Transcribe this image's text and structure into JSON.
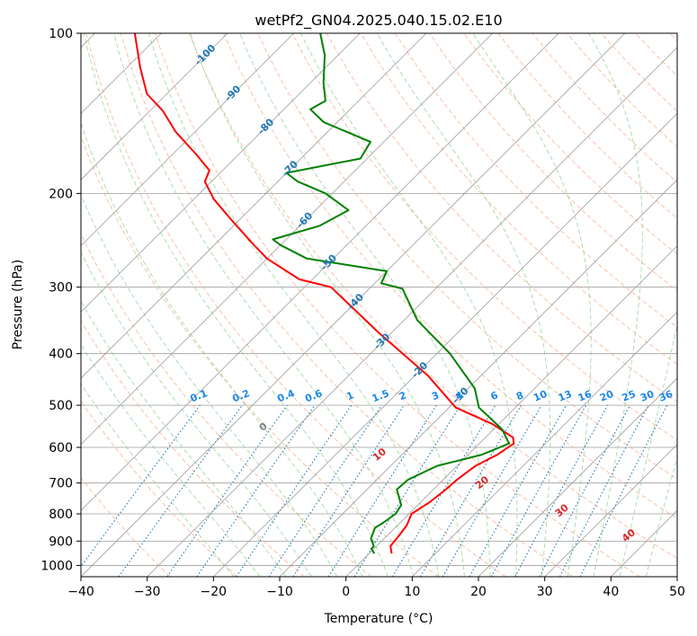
{
  "chart_data": {
    "type": "line",
    "title": "wetPf2_GN04.2025.040.15.02.E10",
    "xlabel": "Temperature (°C)",
    "ylabel": "Pressure (hPa)",
    "xlim": [
      -40,
      50
    ],
    "ylim": [
      1050,
      100
    ],
    "y_scale": "log",
    "grid": true,
    "x_ticks": [
      "−40",
      "−30",
      "−20",
      "−10",
      "0",
      "10",
      "20",
      "30",
      "40",
      "50"
    ],
    "x_tick_values": [
      -40,
      -30,
      -20,
      -10,
      0,
      10,
      20,
      30,
      40,
      50
    ],
    "y_ticks": [
      "100",
      "200",
      "300",
      "400",
      "500",
      "600",
      "700",
      "800",
      "900",
      "1000"
    ],
    "y_tick_values": [
      100,
      200,
      300,
      400,
      500,
      600,
      700,
      800,
      900,
      1000
    ],
    "skew_lines": {
      "isotherm_labels": [
        "-100",
        "-90",
        "-80",
        "-70",
        "-60",
        "-50",
        "-40",
        "-30",
        "-20",
        "-10"
      ],
      "isotherm_values": [
        -100,
        -90,
        -80,
        -70,
        -60,
        -50,
        -40,
        -30,
        -20,
        -10
      ],
      "isotherm_label_pressures": [
        110,
        130,
        150,
        180,
        225,
        270,
        320,
        380,
        430,
        480
      ],
      "mixing_ratio_labels": [
        "0.1",
        "0.2",
        "0.4",
        "0.6",
        "1",
        "1.5",
        "2",
        "3",
        "4",
        "6",
        "8",
        "10",
        "13",
        "16",
        "20",
        "25",
        "30",
        "36"
      ],
      "mixing_ratio_values": [
        0.1,
        0.2,
        0.4,
        0.6,
        1,
        1.5,
        2,
        3,
        4,
        6,
        8,
        10,
        13,
        16,
        20,
        25,
        30,
        36
      ],
      "moist_adiabat_labels": [
        "0",
        "10",
        "20",
        "30",
        "40"
      ],
      "moist_adiabat_values": [
        0,
        10,
        20,
        30,
        40
      ],
      "moist_adiabat_label_pressures": [
        550,
        620,
        700,
        790,
        880
      ],
      "colors": {
        "isotherm": "#9e9e9e",
        "dry_adiabat": "#f4a582",
        "moist_adiabat": "#8fd18f",
        "mixing_ratio": "#1f77b4",
        "isotherm_label": "#1f77b4",
        "mixing_label": "#1e88e5",
        "moist_label_warm": "#d62728",
        "moist_label_zero": "#808080"
      }
    },
    "series": [
      {
        "name": "Temperature",
        "color": "#ff0000",
        "points": [
          [
            3.4,
            950
          ],
          [
            2.1,
            920
          ],
          [
            1.8,
            880
          ],
          [
            1.4,
            840
          ],
          [
            0.4,
            800
          ],
          [
            1.4,
            760
          ],
          [
            1.9,
            720
          ],
          [
            2.1,
            690
          ],
          [
            2.8,
            650
          ],
          [
            4.4,
            620
          ],
          [
            5.2,
            590
          ],
          [
            4.2,
            575
          ],
          [
            -1,
            542
          ],
          [
            -9,
            505
          ],
          [
            -18,
            440
          ],
          [
            -32,
            365
          ],
          [
            -46,
            300
          ],
          [
            -52,
            290
          ],
          [
            -60,
            265
          ],
          [
            -64,
            250
          ],
          [
            -71,
            225
          ],
          [
            -77,
            205
          ],
          [
            -81,
            190
          ],
          [
            -82,
            181
          ],
          [
            -86,
            170
          ],
          [
            -93,
            153
          ],
          [
            -98,
            140
          ],
          [
            -103,
            130
          ],
          [
            -108,
            116
          ],
          [
            -114,
            100
          ]
        ]
      },
      {
        "name": "Dewpoint",
        "color": "#008000",
        "points": [
          [
            0.8,
            950
          ],
          [
            -0.4,
            930
          ],
          [
            -0.4,
            920
          ],
          [
            -2.0,
            890
          ],
          [
            -3.0,
            850
          ],
          [
            -2.5,
            830
          ],
          [
            -2.0,
            800
          ],
          [
            -2.5,
            770
          ],
          [
            -5.5,
            720
          ],
          [
            -5.3,
            690
          ],
          [
            -3,
            650
          ],
          [
            2,
            620
          ],
          [
            4.5,
            590
          ],
          [
            1.3,
            555
          ],
          [
            -2,
            530
          ],
          [
            -5.5,
            505
          ],
          [
            -9,
            465
          ],
          [
            -18,
            400
          ],
          [
            -28,
            346
          ],
          [
            -35,
            302
          ],
          [
            -39,
            295
          ],
          [
            -40,
            280
          ],
          [
            -54,
            265
          ],
          [
            -60,
            250
          ],
          [
            -62,
            244
          ],
          [
            -57,
            230
          ],
          [
            -55,
            215
          ],
          [
            -61,
            200
          ],
          [
            -67,
            190
          ],
          [
            -70,
            183
          ],
          [
            -61,
            172
          ],
          [
            -62,
            160
          ],
          [
            -72,
            147
          ],
          [
            -76,
            139
          ],
          [
            -75,
            134
          ],
          [
            -78,
            124
          ],
          [
            -82,
            110
          ],
          [
            -86,
            100
          ]
        ]
      }
    ]
  }
}
